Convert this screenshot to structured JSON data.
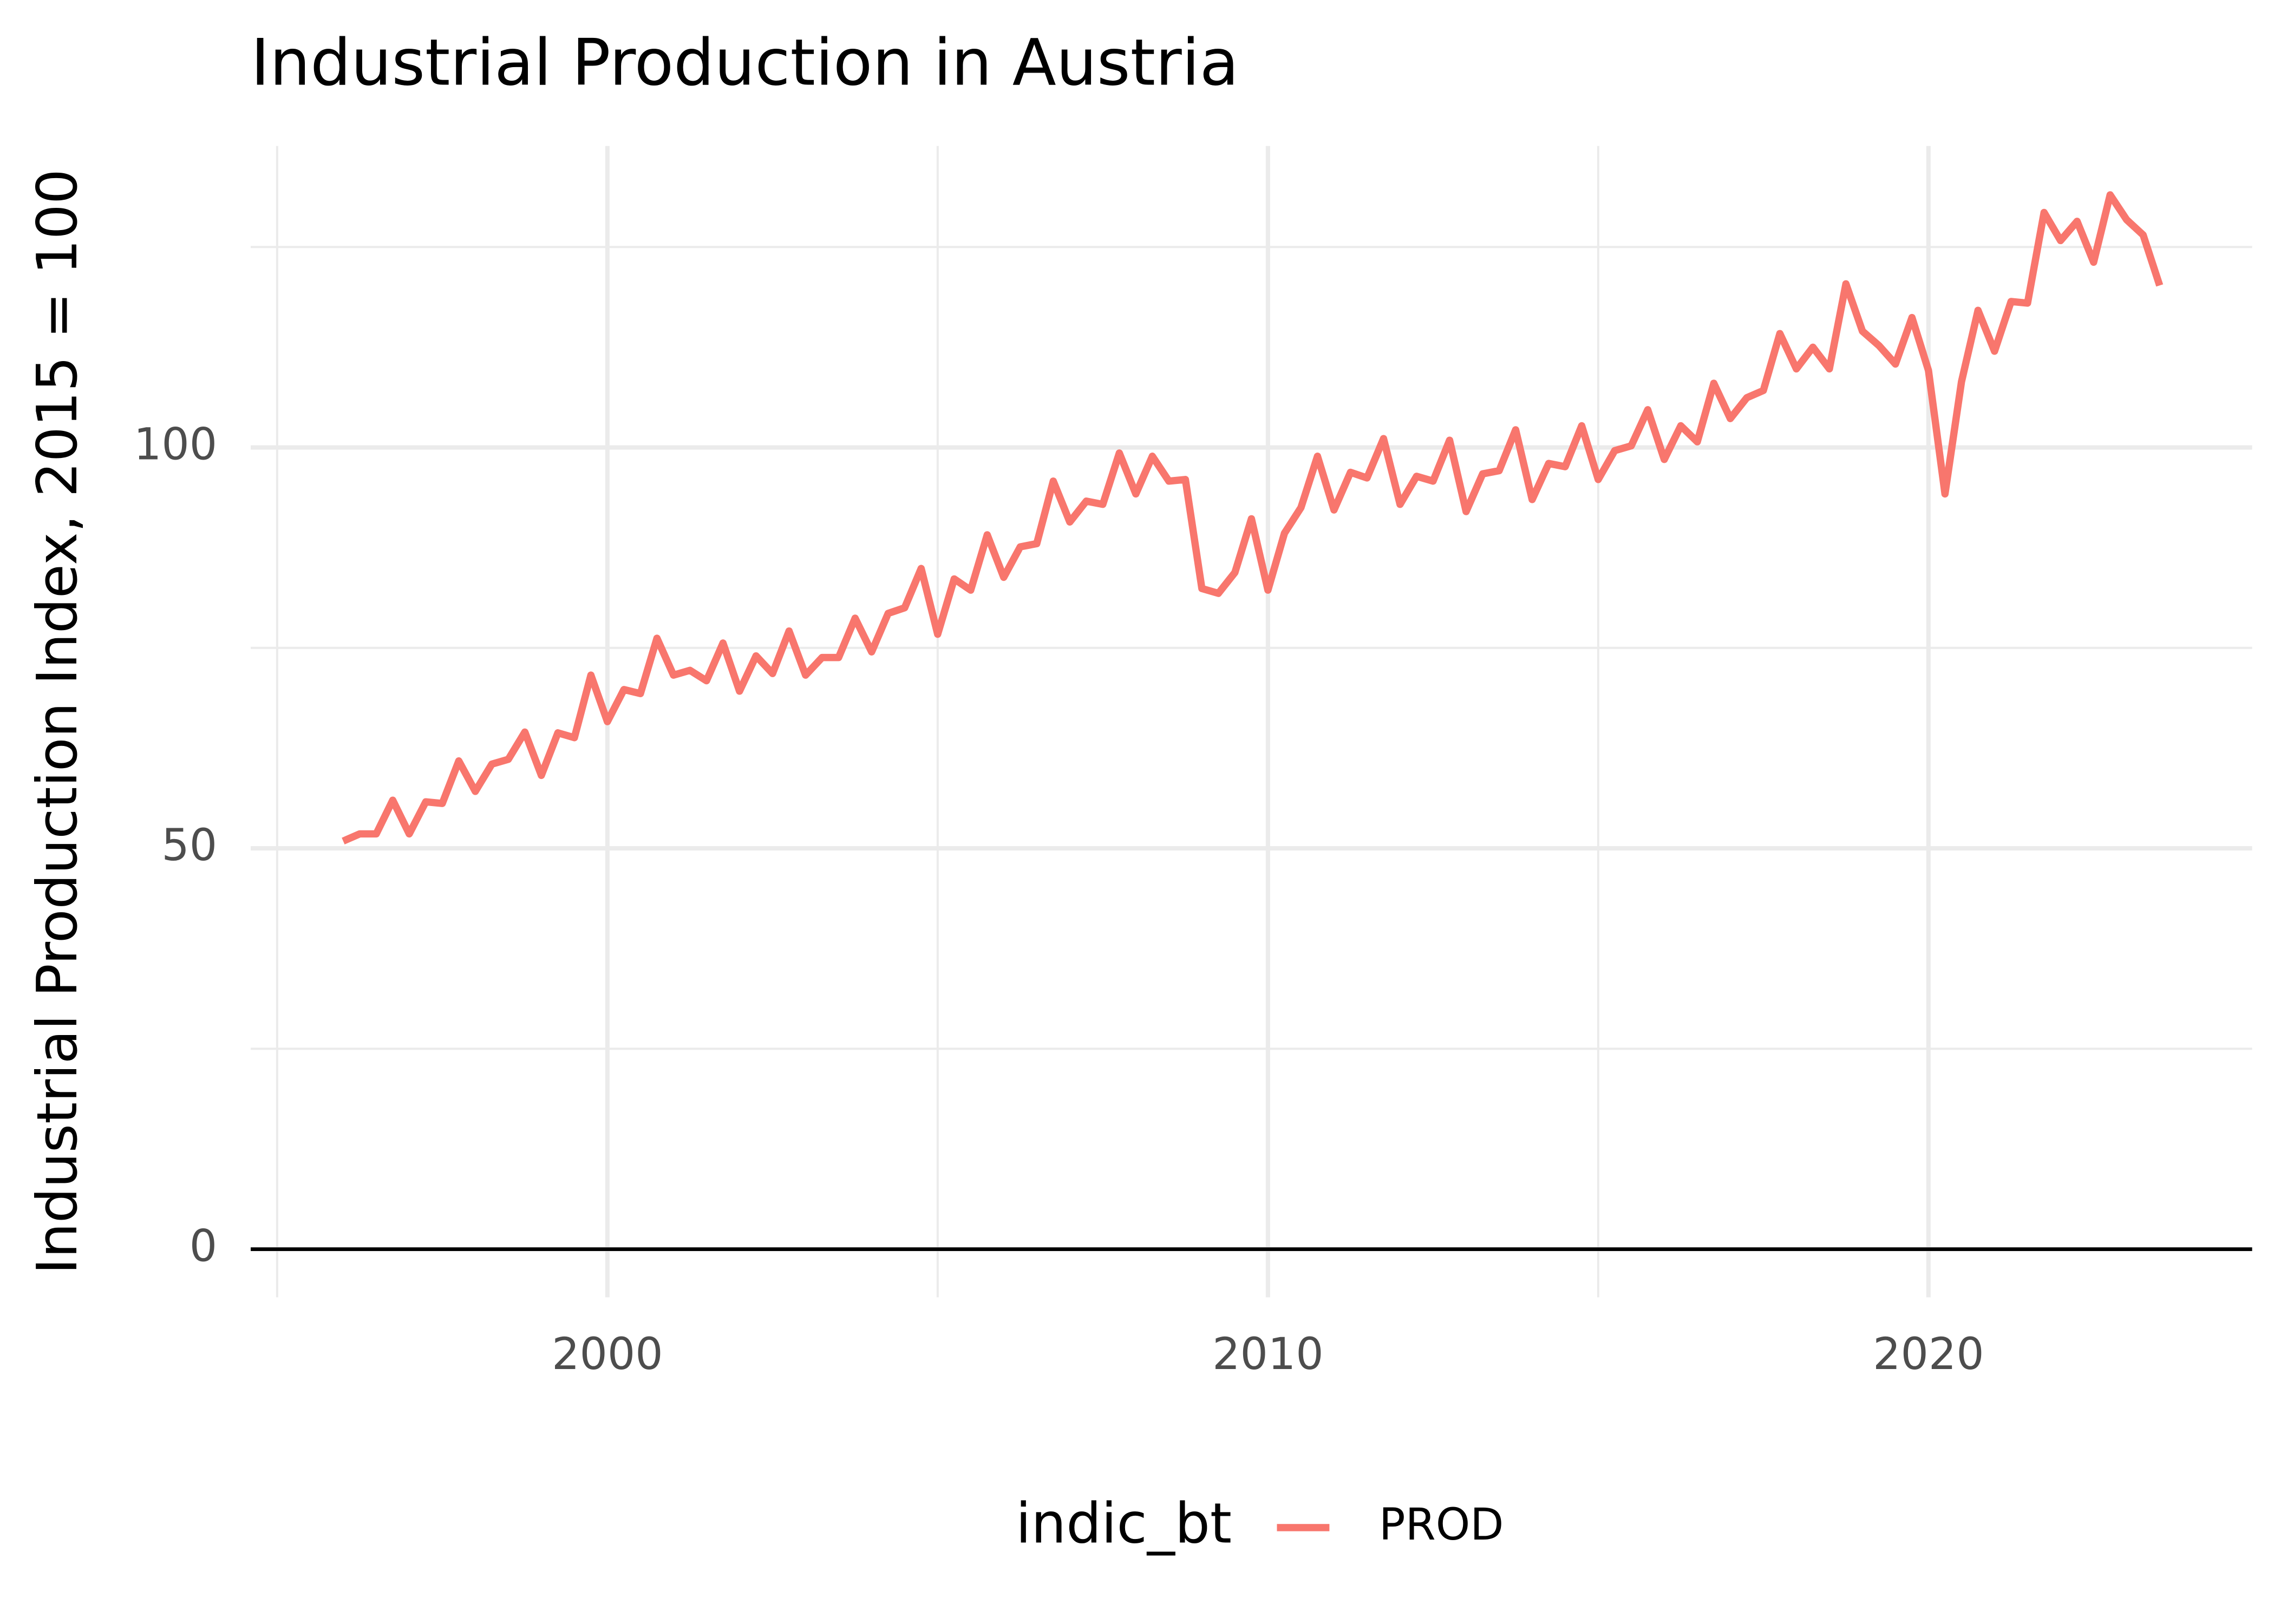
{
  "chart_data": {
    "type": "line",
    "title": "Industrial Production in Austria",
    "y_label": "Industrial Production Index, 2015 = 100",
    "legend_title": "indic_bt",
    "legend_position": "bottom",
    "grid": true,
    "hline": 0,
    "xlim": [
      1994.6,
      2024.9
    ],
    "ylim": [
      -6,
      137.6
    ],
    "xticks": [
      2000,
      2010,
      2020
    ],
    "yticks": [
      0,
      50,
      100
    ],
    "xminor": [
      1995,
      2005,
      2015
    ],
    "yminor": [
      25,
      75,
      125
    ],
    "x": [
      1996,
      1996.25,
      1996.5,
      1996.75,
      1997,
      1997.25,
      1997.5,
      1997.75,
      1998,
      1998.25,
      1998.5,
      1998.75,
      1999,
      1999.25,
      1999.5,
      1999.75,
      2000,
      2000.25,
      2000.5,
      2000.75,
      2001,
      2001.25,
      2001.5,
      2001.75,
      2002,
      2002.25,
      2002.5,
      2002.75,
      2003,
      2003.25,
      2003.5,
      2003.75,
      2004,
      2004.25,
      2004.5,
      2004.75,
      2005,
      2005.25,
      2005.5,
      2005.75,
      2006,
      2006.25,
      2006.5,
      2006.75,
      2007,
      2007.25,
      2007.5,
      2007.75,
      2008,
      2008.25,
      2008.5,
      2008.75,
      2009,
      2009.25,
      2009.5,
      2009.75,
      2010,
      2010.25,
      2010.5,
      2010.75,
      2011,
      2011.25,
      2011.5,
      2011.75,
      2012,
      2012.25,
      2012.5,
      2012.75,
      2013,
      2013.25,
      2013.5,
      2013.75,
      2014,
      2014.25,
      2014.5,
      2014.75,
      2015,
      2015.25,
      2015.5,
      2015.75,
      2016,
      2016.25,
      2016.5,
      2016.75,
      2017,
      2017.25,
      2017.5,
      2017.75,
      2018,
      2018.25,
      2018.5,
      2018.75,
      2019,
      2019.25,
      2019.5,
      2019.75,
      2020,
      2020.25,
      2020.5,
      2020.75,
      2021,
      2021.25,
      2021.5,
      2021.75,
      2022,
      2022.25,
      2022.5,
      2022.75,
      2023,
      2023.25,
      2023.5
    ],
    "series": [
      {
        "name": "PROD",
        "color": "#f8766d",
        "values": [
          50.9,
          51.8,
          51.8,
          56.0,
          51.8,
          55.8,
          55.6,
          60.9,
          57.1,
          60.5,
          61.1,
          64.5,
          59.1,
          64.4,
          63.8,
          71.6,
          65.8,
          69.8,
          69.3,
          76.2,
          71.6,
          72.2,
          70.9,
          75.6,
          69.6,
          74.0,
          71.8,
          77.1,
          71.6,
          73.8,
          73.8,
          78.7,
          74.5,
          79.3,
          80.0,
          84.9,
          76.7,
          83.6,
          82.2,
          89.1,
          83.8,
          87.6,
          88.0,
          95.8,
          90.7,
          93.3,
          92.9,
          99.3,
          94.2,
          98.9,
          95.8,
          96.0,
          82.4,
          81.8,
          84.4,
          91.1,
          82.2,
          89.3,
          92.5,
          98.9,
          92.2,
          96.9,
          96.2,
          101.1,
          92.9,
          96.4,
          95.8,
          100.9,
          92.0,
          96.7,
          97.1,
          102.2,
          93.5,
          98.0,
          97.6,
          102.7,
          96.0,
          99.6,
          100.2,
          104.7,
          98.5,
          102.7,
          100.7,
          108.0,
          103.6,
          106.2,
          107.1,
          114.2,
          109.8,
          112.5,
          109.8,
          120.4,
          114.5,
          112.7,
          110.4,
          116.2,
          109.6,
          94.2,
          108.2,
          117.1,
          112.0,
          118.2,
          118.0,
          129.3,
          125.8,
          128.2,
          123.1,
          131.5,
          128.4,
          126.5,
          120.2
        ]
      }
    ]
  }
}
